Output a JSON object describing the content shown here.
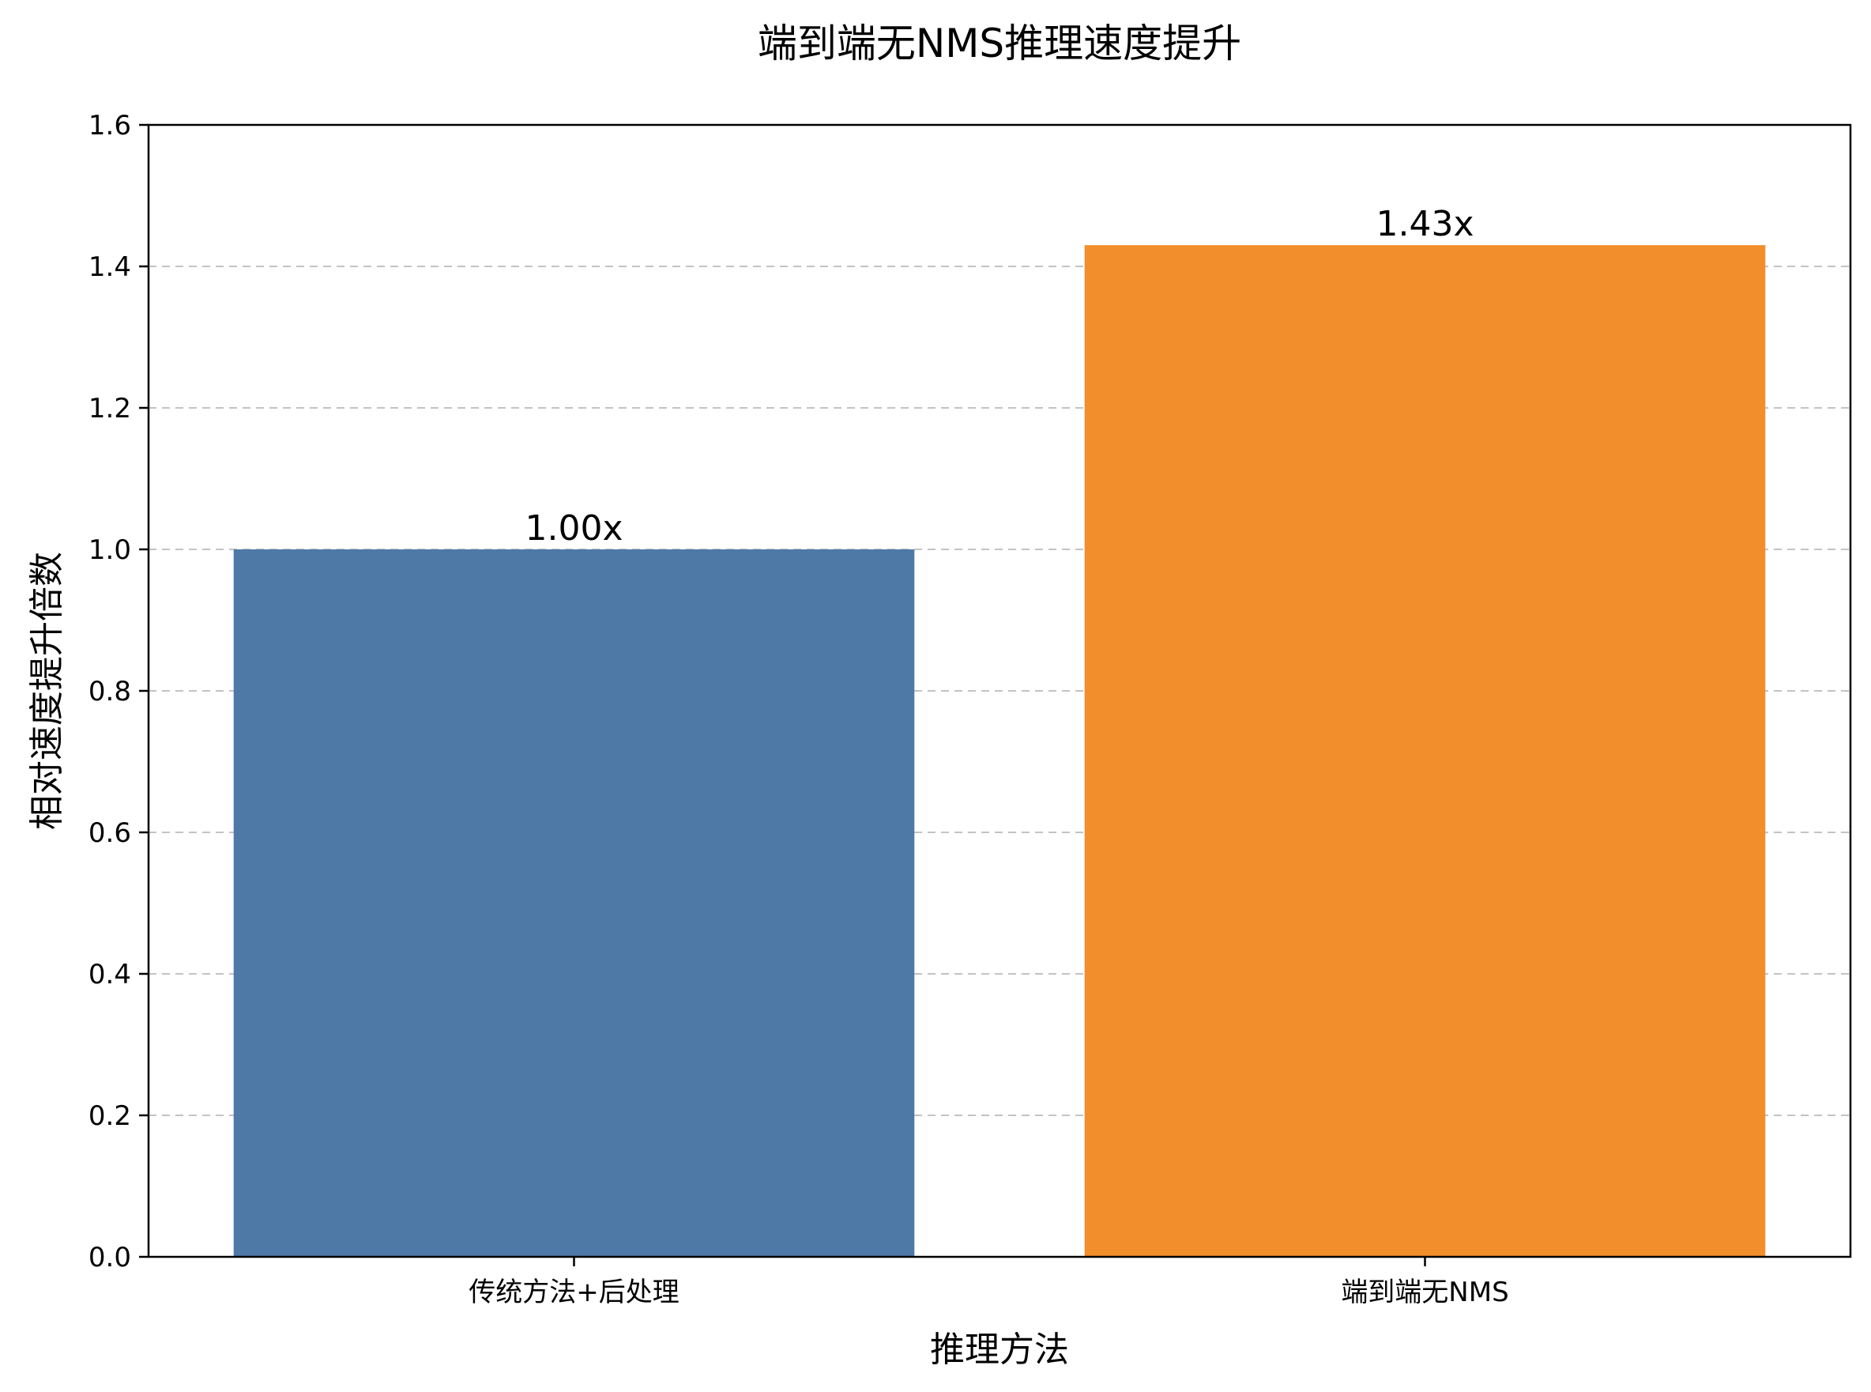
{
  "chart_data": {
    "type": "bar",
    "title": "端到端无NMS推理速度提升",
    "xlabel": "推理方法",
    "ylabel": "相对速度提升倍数",
    "categories": [
      "传统方法+后处理",
      "端到端无NMS"
    ],
    "values": [
      1.0,
      1.43
    ],
    "value_labels": [
      "1.00x",
      "1.43x"
    ],
    "colors": [
      "#4e79a7",
      "#f28e2b"
    ],
    "ylim": [
      0,
      1.6
    ],
    "yticks": [
      0.0,
      0.2,
      0.4,
      0.6,
      0.8,
      1.0,
      1.2,
      1.4,
      1.6
    ],
    "ytick_labels": [
      "0.0",
      "0.2",
      "0.4",
      "0.6",
      "0.8",
      "1.0",
      "1.2",
      "1.4",
      "1.6"
    ],
    "grid": "y-axis dashed",
    "legend": "none"
  }
}
